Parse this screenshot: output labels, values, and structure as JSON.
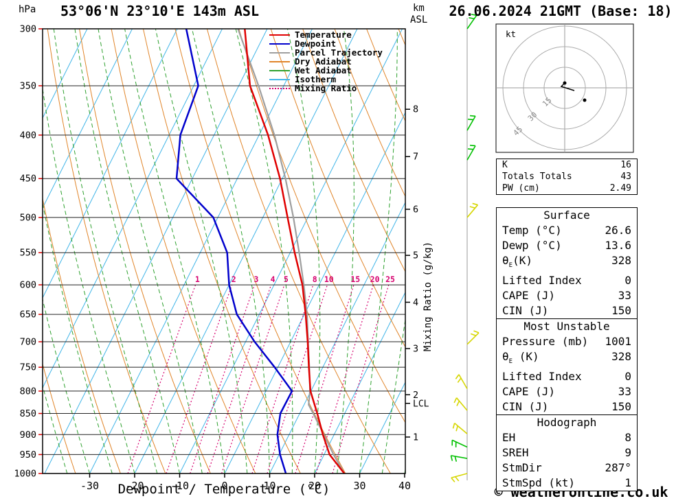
{
  "header": {
    "station_title": "53°06'N 23°10'E 143m ASL",
    "datetime_title": "26.06.2024 21GMT (Base: 18)"
  },
  "axes": {
    "pressure_unit": "hPa",
    "km_label_line1": "km",
    "km_label_line2": "ASL",
    "x_label": "Dewpoint / Temperature (°C)",
    "mixing_label": "Mixing Ratio (g/kg)",
    "lcl_label": "LCL"
  },
  "legend": [
    {
      "label": "Temperature",
      "color": "#e00000",
      "style": "solid"
    },
    {
      "label": "Dewpoint",
      "color": "#0000cc",
      "style": "solid"
    },
    {
      "label": "Parcel Trajectory",
      "color": "#9e9e9e",
      "style": "solid"
    },
    {
      "label": "Dry Adiabat",
      "color": "#e08428",
      "style": "solid"
    },
    {
      "label": "Wet Adiabat",
      "color": "#2da02d",
      "style": "solid"
    },
    {
      "label": "Isotherm",
      "color": "#3fb4e8",
      "style": "solid"
    },
    {
      "label": "Mixing Ratio",
      "color": "#d6006e",
      "style": "dotted"
    }
  ],
  "colors": {
    "temperature": "#e00000",
    "dewpoint": "#0000cc",
    "parcel": "#9e9e9e",
    "dry_adiabat": "#e08428",
    "wet_adiabat": "#2da02d",
    "isotherm": "#3fb4e8",
    "mixing_ratio": "#d6006e",
    "grid": "#222222",
    "pressure_tick": "#e00000",
    "barb_green": "#00c000",
    "barb_yellow": "#d6d600",
    "wind_axis": "#999999"
  },
  "chart_data": {
    "type": "skewt-log-p",
    "pressure_levels": [
      300,
      350,
      400,
      450,
      500,
      550,
      600,
      650,
      700,
      750,
      800,
      850,
      900,
      950,
      1000
    ],
    "temp_ticks": [
      -30,
      -20,
      -10,
      0,
      10,
      20,
      30,
      40
    ],
    "km_ticks": [
      {
        "label": "8",
        "p": 373
      },
      {
        "label": "7",
        "p": 424
      },
      {
        "label": "6",
        "p": 489
      },
      {
        "label": "5",
        "p": 554
      },
      {
        "label": "4",
        "p": 629
      },
      {
        "label": "3",
        "p": 713
      },
      {
        "label": "2",
        "p": 808
      },
      {
        "label": "1",
        "p": 906
      }
    ],
    "lcl_pressure": 827,
    "isotherms": {
      "start": -110,
      "end": 40,
      "step": 10
    },
    "dry_adiabats": {
      "start": 240,
      "end": 390,
      "step": 10
    },
    "wet_adiabats": {
      "start": -35,
      "end": 40,
      "step": 5
    },
    "mixing_ratio_values": [
      1,
      2,
      3,
      4,
      5,
      8,
      10,
      15,
      20,
      25
    ],
    "temperature": [
      [
        300,
        -45
      ],
      [
        350,
        -37.5
      ],
      [
        400,
        -28
      ],
      [
        450,
        -20.5
      ],
      [
        500,
        -14.5
      ],
      [
        550,
        -9
      ],
      [
        600,
        -3.7
      ],
      [
        650,
        0.3
      ],
      [
        700,
        3.8
      ],
      [
        750,
        6.9
      ],
      [
        800,
        9.9
      ],
      [
        850,
        13.9
      ],
      [
        900,
        17.5
      ],
      [
        950,
        21.2
      ],
      [
        1000,
        26.6
      ]
    ],
    "dewpoint": [
      [
        300,
        -58
      ],
      [
        350,
        -49
      ],
      [
        400,
        -47.5
      ],
      [
        450,
        -43.5
      ],
      [
        500,
        -31
      ],
      [
        550,
        -24
      ],
      [
        600,
        -20
      ],
      [
        650,
        -15
      ],
      [
        700,
        -8
      ],
      [
        750,
        -0.7
      ],
      [
        800,
        5.8
      ],
      [
        850,
        5.7
      ],
      [
        900,
        7.4
      ],
      [
        950,
        10.2
      ],
      [
        1000,
        13.6
      ]
    ],
    "parcel": [
      [
        300,
        -46.5
      ],
      [
        350,
        -35.6
      ],
      [
        400,
        -26.6
      ],
      [
        450,
        -19.3
      ],
      [
        500,
        -13.2
      ],
      [
        550,
        -8.0
      ],
      [
        600,
        -3.4
      ],
      [
        650,
        0.6
      ],
      [
        700,
        3.9
      ],
      [
        750,
        7.0
      ],
      [
        800,
        9.8
      ],
      [
        830,
        11.0
      ],
      [
        850,
        13.0
      ],
      [
        900,
        17.7
      ],
      [
        950,
        22.1
      ],
      [
        1000,
        26.6
      ]
    ],
    "wind_barbs": [
      {
        "p": 300,
        "color": "green",
        "angle": 55
      },
      {
        "p": 395,
        "color": "green",
        "angle": 60
      },
      {
        "p": 428,
        "color": "green",
        "angle": 60
      },
      {
        "p": 500,
        "color": "yellow",
        "angle": 50
      },
      {
        "p": 705,
        "color": "yellow",
        "angle": 45
      },
      {
        "p": 795,
        "color": "yellow",
        "angle": 120
      },
      {
        "p": 843,
        "color": "yellow",
        "angle": 130
      },
      {
        "p": 898,
        "color": "yellow",
        "angle": 140
      },
      {
        "p": 931,
        "color": "green",
        "angle": 155
      },
      {
        "p": 960,
        "color": "green",
        "angle": 170
      },
      {
        "p": 1000,
        "color": "yellow",
        "angle": 195
      }
    ]
  },
  "hodograph": {
    "unit_label": "kt",
    "ring_labels": [
      "15",
      "30",
      "45"
    ],
    "trace": [
      [
        822,
        121
      ],
      [
        817,
        126
      ],
      [
        836,
        132
      ]
    ],
    "dots": [
      [
        822,
        121
      ],
      [
        851,
        146
      ]
    ]
  },
  "tables": {
    "summary": {
      "rows": [
        [
          "K",
          "16"
        ],
        [
          "Totals Totals",
          "43"
        ],
        [
          "PW (cm)",
          "2.49"
        ]
      ]
    },
    "sections": [
      {
        "title": "Surface",
        "rows": [
          [
            "Temp (°C)",
            "26.6"
          ],
          [
            "Dewp (°C)",
            "13.6"
          ],
          [
            "θ_E(K)",
            "328"
          ],
          [
            "Lifted Index",
            "0"
          ],
          [
            "CAPE (J)",
            "33"
          ],
          [
            "CIN (J)",
            "150"
          ]
        ]
      },
      {
        "title": "Most Unstable",
        "rows": [
          [
            "Pressure (mb)",
            "1001"
          ],
          [
            "θ_E (K)",
            "328"
          ],
          [
            "Lifted Index",
            "0"
          ],
          [
            "CAPE (J)",
            "33"
          ],
          [
            "CIN (J)",
            "150"
          ]
        ]
      },
      {
        "title": "Hodograph",
        "rows": [
          [
            "EH",
            "8"
          ],
          [
            "SREH",
            "9"
          ],
          [
            "StmDir",
            "287°"
          ],
          [
            "StmSpd (kt)",
            "1"
          ]
        ]
      }
    ]
  },
  "footer": {
    "copyright": "© weatheronline.co.uk"
  }
}
